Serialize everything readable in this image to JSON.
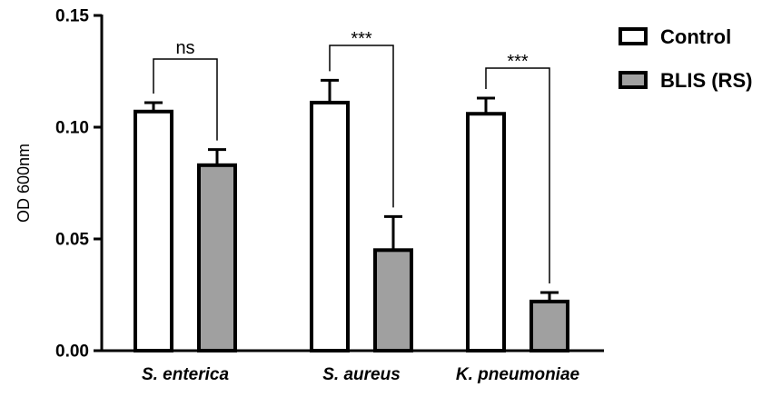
{
  "chart_data": {
    "type": "bar",
    "ylabel": "OD 600nm",
    "ylim": [
      0,
      0.15
    ],
    "yticks": [
      "0.00",
      "0.05",
      "0.10",
      "0.15"
    ],
    "yticks_values": [
      0,
      0.05,
      0.1,
      0.15
    ],
    "categories": [
      "S. enterica",
      "S. aureus",
      "K. pneumoniae"
    ],
    "series": [
      {
        "name": "Control",
        "values": [
          0.107,
          0.111,
          0.106
        ],
        "errors": [
          0.004,
          0.01,
          0.007
        ],
        "color": "#ffffff"
      },
      {
        "name": "BLIS (RS)",
        "values": [
          0.083,
          0.045,
          0.022
        ],
        "errors": [
          0.007,
          0.015,
          0.004
        ],
        "color": "#a0a0a0"
      }
    ],
    "significance": [
      "ns",
      "***",
      "***"
    ],
    "legend_position": "top-right",
    "grid": false
  }
}
